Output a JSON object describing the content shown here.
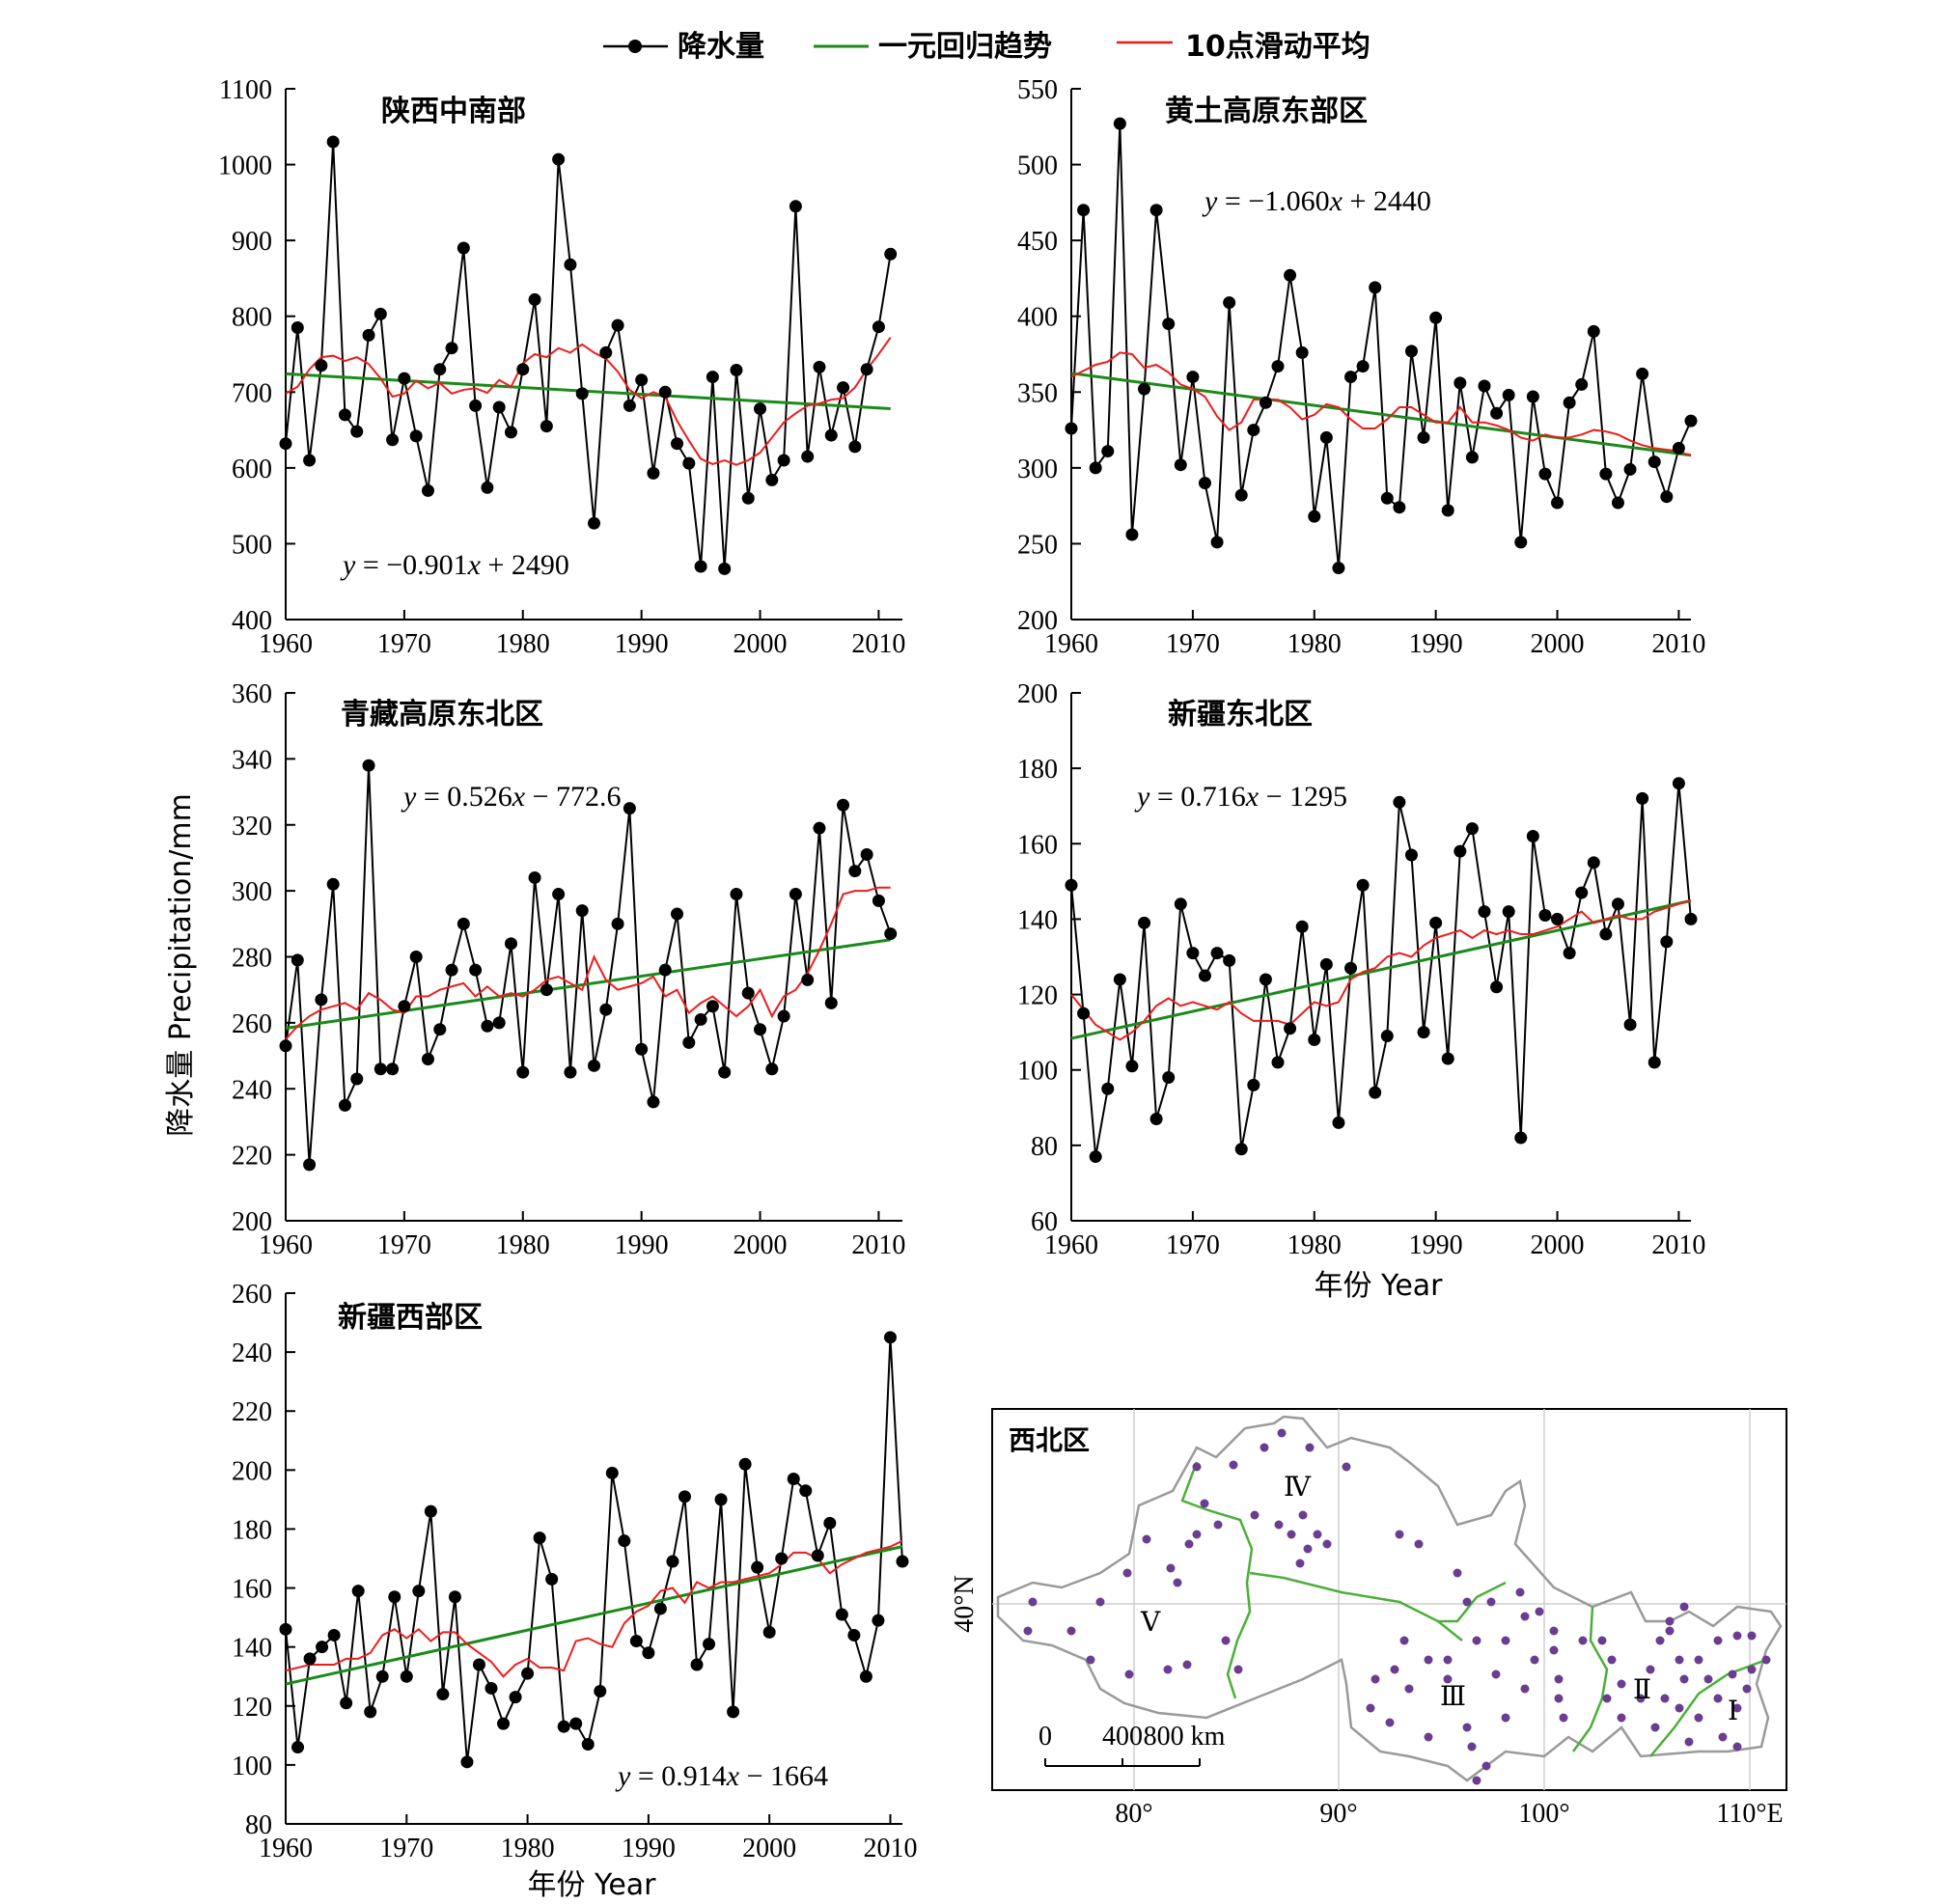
{
  "legend": {
    "items": [
      {
        "label": "降水量",
        "color": "#000000",
        "kind": "line-marker"
      },
      {
        "label": "一元回归趋势",
        "color": "#1a8a1a",
        "kind": "line"
      },
      {
        "label": "10点滑动平均",
        "color": "#ee1c1c",
        "kind": "line"
      }
    ]
  },
  "axis_titles": {
    "y": "降水量 Precipitation/mm",
    "x_right": "年份 Year",
    "x_bottom": "年份 Year"
  },
  "colors": {
    "precip": "#000000",
    "trend": "#1a8a1a",
    "moving": "#ee1c1c"
  },
  "chart_data": [
    {
      "type": "line",
      "title": "陕西中南部",
      "equation": {
        "prefix": "y",
        "rest": " = −0.901",
        "var": "x",
        "tail": " + 2490"
      },
      "slope": -0.901,
      "intercept": 2490,
      "x_start": 1960,
      "xlim": [
        1960,
        2012
      ],
      "ylim": [
        400,
        1100
      ],
      "xticks": [
        "1960",
        "1970",
        "1980",
        "1990",
        "2000",
        "2010"
      ],
      "yticks": [
        "400",
        "500",
        "600",
        "700",
        "800",
        "900",
        "1000",
        "1100"
      ],
      "values": [
        632,
        785,
        610,
        735,
        1030,
        670,
        648,
        775,
        803,
        637,
        718,
        642,
        570,
        730,
        758,
        890,
        682,
        574,
        680,
        647,
        730,
        822,
        655,
        1007,
        868,
        698,
        527,
        752,
        788,
        682,
        716,
        593,
        700,
        632,
        606,
        470,
        720,
        467,
        729,
        560,
        678,
        584,
        610,
        945,
        615,
        733,
        643,
        706,
        628,
        730,
        786,
        882
      ],
      "moving_avg": [
        698,
        707,
        730,
        746,
        748,
        741,
        746,
        737,
        718,
        694,
        698,
        715,
        705,
        712,
        698,
        703,
        705,
        699,
        716,
        707,
        738,
        750,
        746,
        758,
        752,
        763,
        752,
        744,
        727,
        703,
        692,
        700,
        694,
        662,
        636,
        612,
        605,
        610,
        604,
        610,
        620,
        640,
        660,
        672,
        682,
        685,
        690,
        692,
        706,
        730,
        750,
        772
      ]
    },
    {
      "type": "line",
      "title": "黄土高原东部区",
      "equation": {
        "prefix": "y",
        "rest": " = −1.060",
        "var": "x",
        "tail": " + 2440"
      },
      "slope": -1.06,
      "intercept": 2440,
      "x_start": 1960,
      "xlim": [
        1960,
        2011
      ],
      "ylim": [
        200,
        550
      ],
      "xticks": [
        "1960",
        "1970",
        "1980",
        "1990",
        "2000",
        "2010"
      ],
      "yticks": [
        "200",
        "250",
        "300",
        "350",
        "400",
        "450",
        "500",
        "550"
      ],
      "values": [
        326,
        470,
        300,
        311,
        527,
        256,
        352,
        470,
        395,
        302,
        360,
        290,
        251,
        409,
        282,
        325,
        343,
        367,
        427,
        376,
        268,
        320,
        234,
        360,
        367,
        419,
        280,
        274,
        377,
        320,
        399,
        272,
        356,
        307,
        354,
        336,
        348,
        251,
        347,
        296,
        277,
        343,
        355,
        390,
        296,
        277,
        299,
        362,
        304,
        281,
        313,
        331
      ],
      "moving_avg": [
        360,
        364,
        368,
        370,
        376,
        375,
        366,
        368,
        363,
        355,
        352,
        347,
        334,
        325,
        330,
        345,
        345,
        345,
        340,
        332,
        335,
        342,
        340,
        332,
        326,
        326,
        332,
        340,
        340,
        335,
        330,
        330,
        340,
        330,
        330,
        328,
        325,
        320,
        318,
        322,
        320,
        320,
        322,
        325,
        324,
        322,
        318,
        315,
        313,
        312,
        311,
        308
      ]
    },
    {
      "type": "line",
      "title": "青藏高原东北区",
      "equation": {
        "prefix": "y",
        "rest": " = 0.526",
        "var": "x",
        "tail": " − 772.6"
      },
      "slope": 0.526,
      "intercept": -772.6,
      "x_start": 1960,
      "xlim": [
        1960,
        2012
      ],
      "ylim": [
        200,
        360
      ],
      "xticks": [
        "1960",
        "1970",
        "1980",
        "1990",
        "2000",
        "2010"
      ],
      "yticks": [
        "200",
        "220",
        "240",
        "260",
        "280",
        "300",
        "320",
        "340",
        "360"
      ],
      "values": [
        253,
        279,
        217,
        267,
        302,
        235,
        243,
        338,
        246,
        246,
        265,
        280,
        249,
        258,
        276,
        290,
        276,
        259,
        260,
        284,
        245,
        304,
        270,
        299,
        245,
        294,
        247,
        264,
        290,
        325,
        252,
        236,
        276,
        293,
        254,
        261,
        265,
        245,
        299,
        269,
        258,
        246,
        262,
        299,
        273,
        319,
        266,
        326,
        306,
        311,
        297,
        287
      ],
      "moving_avg": [
        255,
        259,
        262,
        264,
        265,
        266,
        264,
        269,
        267,
        264,
        263,
        268,
        268,
        270,
        271,
        272,
        268,
        271,
        268,
        269,
        268,
        270,
        273,
        274,
        272,
        270,
        280,
        273,
        270,
        271,
        272,
        274,
        268,
        270,
        263,
        266,
        268,
        265,
        262,
        265,
        270,
        262,
        268,
        270,
        275,
        282,
        290,
        299,
        300,
        300,
        301,
        301
      ]
    },
    {
      "type": "line",
      "title": "新疆东北区",
      "equation": {
        "prefix": "y",
        "rest": " = 0.716",
        "var": "x",
        "tail": " − 1295"
      },
      "slope": 0.716,
      "intercept": -1295,
      "x_start": 1960,
      "xlim": [
        1960,
        2011
      ],
      "ylim": [
        60,
        200
      ],
      "xticks": [
        "1960",
        "1970",
        "1980",
        "1990",
        "2000",
        "2010"
      ],
      "yticks": [
        "60",
        "80",
        "100",
        "120",
        "140",
        "160",
        "180",
        "200"
      ],
      "values": [
        149,
        115,
        77,
        95,
        124,
        101,
        139,
        87,
        98,
        144,
        131,
        125,
        131,
        129,
        79,
        96,
        124,
        102,
        111,
        138,
        108,
        128,
        86,
        127,
        149,
        94,
        109,
        171,
        157,
        110,
        139,
        103,
        158,
        164,
        142,
        122,
        142,
        82,
        162,
        141,
        140,
        131,
        147,
        155,
        136,
        144,
        112,
        172,
        102,
        134,
        176,
        140
      ],
      "moving_avg": [
        120,
        116,
        112,
        110,
        108,
        110,
        113,
        117,
        119,
        117,
        118,
        117,
        116,
        118,
        115,
        113,
        113,
        113,
        112,
        115,
        118,
        117,
        118,
        124,
        126,
        127,
        130,
        131,
        130,
        133,
        135,
        136,
        137,
        135,
        137,
        136,
        137,
        136,
        136,
        137,
        138,
        140,
        142,
        139,
        140,
        141,
        140,
        140,
        142,
        143,
        144,
        145
      ]
    },
    {
      "type": "line",
      "title": "新疆西部区",
      "equation": {
        "prefix": "y",
        "rest": " = 0.914",
        "var": "x",
        "tail": " − 1664"
      },
      "slope": 0.914,
      "intercept": -1664,
      "x_start": 1960,
      "xlim": [
        1960,
        2011
      ],
      "ylim": [
        80,
        260
      ],
      "xticks": [
        "1960",
        "1970",
        "1980",
        "1990",
        "2000",
        "2010"
      ],
      "yticks": [
        "80",
        "100",
        "120",
        "140",
        "160",
        "180",
        "200",
        "220",
        "240",
        "260"
      ],
      "values": [
        146,
        106,
        136,
        140,
        144,
        121,
        159,
        118,
        130,
        157,
        130,
        159,
        186,
        124,
        157,
        101,
        134,
        126,
        114,
        123,
        131,
        177,
        163,
        113,
        114,
        107,
        125,
        199,
        176,
        142,
        138,
        153,
        169,
        191,
        134,
        141,
        190,
        118,
        202,
        167,
        145,
        170,
        197,
        193,
        171,
        182,
        151,
        144,
        130,
        149,
        245,
        169
      ],
      "moving_avg": [
        132,
        133,
        134,
        134,
        134,
        136,
        136,
        138,
        144,
        146,
        143,
        146,
        142,
        145,
        145,
        141,
        138,
        135,
        130,
        134,
        136,
        133,
        133,
        132,
        142,
        143,
        141,
        140,
        148,
        152,
        154,
        159,
        160,
        155,
        162,
        160,
        162,
        162,
        163,
        164,
        165,
        168,
        172,
        172,
        170,
        165,
        168,
        170,
        172,
        173,
        174,
        176
      ]
    }
  ],
  "map": {
    "title": "西北区",
    "regions": [
      "Ⅳ",
      "Ⅴ",
      "Ⅲ",
      "Ⅱ",
      "Ⅰ"
    ],
    "lon_labels": [
      "80°",
      "90°",
      "100°",
      "110°E"
    ],
    "lat_label": "40°N",
    "scale_labels": [
      "0",
      "400",
      "800 km"
    ],
    "station_color": "#6a3d8f",
    "boundary_color": "#4caf3a"
  }
}
